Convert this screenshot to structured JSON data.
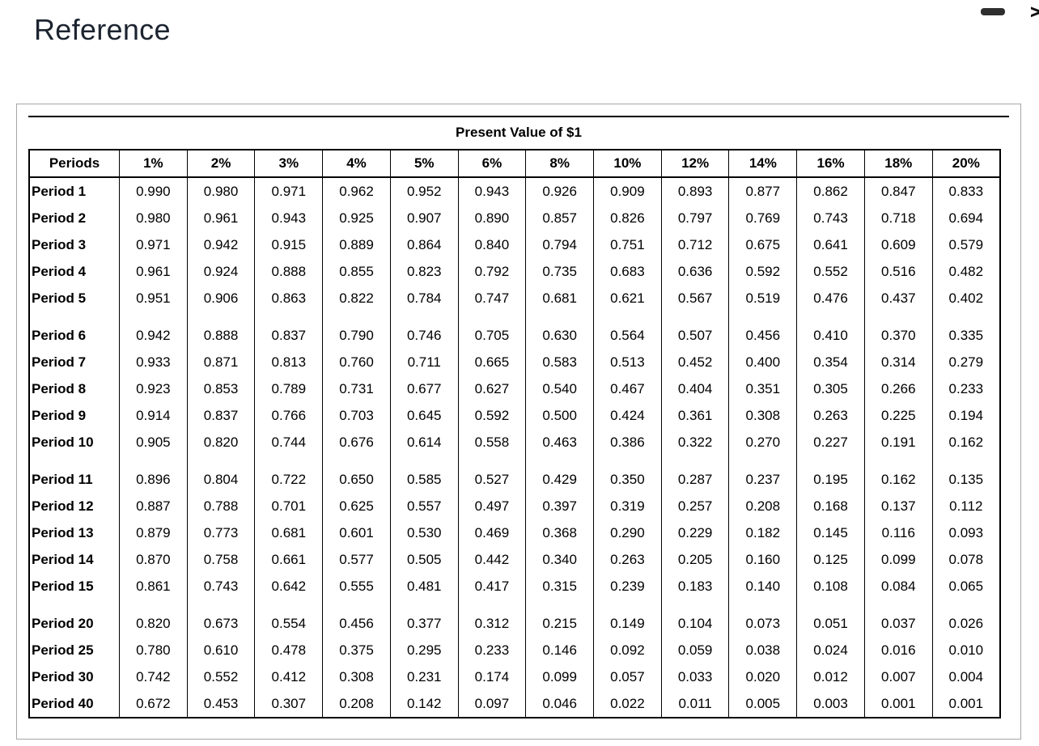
{
  "page": {
    "title": "Reference"
  },
  "window_controls": {
    "chevron": ">"
  },
  "colors": {
    "heading": "#1c2430"
  },
  "table": {
    "title": "Present Value of $1",
    "col_headers": [
      "Periods",
      "1%",
      "2%",
      "3%",
      "4%",
      "5%",
      "6%",
      "8%",
      "10%",
      "12%",
      "14%",
      "16%",
      "18%",
      "20%"
    ],
    "row_groups": [
      [
        {
          "label": "Period 1",
          "values": [
            "0.990",
            "0.980",
            "0.971",
            "0.962",
            "0.952",
            "0.943",
            "0.926",
            "0.909",
            "0.893",
            "0.877",
            "0.862",
            "0.847",
            "0.833"
          ]
        },
        {
          "label": "Period 2",
          "values": [
            "0.980",
            "0.961",
            "0.943",
            "0.925",
            "0.907",
            "0.890",
            "0.857",
            "0.826",
            "0.797",
            "0.769",
            "0.743",
            "0.718",
            "0.694"
          ]
        },
        {
          "label": "Period 3",
          "values": [
            "0.971",
            "0.942",
            "0.915",
            "0.889",
            "0.864",
            "0.840",
            "0.794",
            "0.751",
            "0.712",
            "0.675",
            "0.641",
            "0.609",
            "0.579"
          ]
        },
        {
          "label": "Period 4",
          "values": [
            "0.961",
            "0.924",
            "0.888",
            "0.855",
            "0.823",
            "0.792",
            "0.735",
            "0.683",
            "0.636",
            "0.592",
            "0.552",
            "0.516",
            "0.482"
          ]
        },
        {
          "label": "Period 5",
          "values": [
            "0.951",
            "0.906",
            "0.863",
            "0.822",
            "0.784",
            "0.747",
            "0.681",
            "0.621",
            "0.567",
            "0.519",
            "0.476",
            "0.437",
            "0.402"
          ]
        }
      ],
      [
        {
          "label": "Period 6",
          "values": [
            "0.942",
            "0.888",
            "0.837",
            "0.790",
            "0.746",
            "0.705",
            "0.630",
            "0.564",
            "0.507",
            "0.456",
            "0.410",
            "0.370",
            "0.335"
          ]
        },
        {
          "label": "Period 7",
          "values": [
            "0.933",
            "0.871",
            "0.813",
            "0.760",
            "0.711",
            "0.665",
            "0.583",
            "0.513",
            "0.452",
            "0.400",
            "0.354",
            "0.314",
            "0.279"
          ]
        },
        {
          "label": "Period 8",
          "values": [
            "0.923",
            "0.853",
            "0.789",
            "0.731",
            "0.677",
            "0.627",
            "0.540",
            "0.467",
            "0.404",
            "0.351",
            "0.305",
            "0.266",
            "0.233"
          ]
        },
        {
          "label": "Period 9",
          "values": [
            "0.914",
            "0.837",
            "0.766",
            "0.703",
            "0.645",
            "0.592",
            "0.500",
            "0.424",
            "0.361",
            "0.308",
            "0.263",
            "0.225",
            "0.194"
          ]
        },
        {
          "label": "Period 10",
          "values": [
            "0.905",
            "0.820",
            "0.744",
            "0.676",
            "0.614",
            "0.558",
            "0.463",
            "0.386",
            "0.322",
            "0.270",
            "0.227",
            "0.191",
            "0.162"
          ]
        }
      ],
      [
        {
          "label": "Period 11",
          "values": [
            "0.896",
            "0.804",
            "0.722",
            "0.650",
            "0.585",
            "0.527",
            "0.429",
            "0.350",
            "0.287",
            "0.237",
            "0.195",
            "0.162",
            "0.135"
          ]
        },
        {
          "label": "Period 12",
          "values": [
            "0.887",
            "0.788",
            "0.701",
            "0.625",
            "0.557",
            "0.497",
            "0.397",
            "0.319",
            "0.257",
            "0.208",
            "0.168",
            "0.137",
            "0.112"
          ]
        },
        {
          "label": "Period 13",
          "values": [
            "0.879",
            "0.773",
            "0.681",
            "0.601",
            "0.530",
            "0.469",
            "0.368",
            "0.290",
            "0.229",
            "0.182",
            "0.145",
            "0.116",
            "0.093"
          ]
        },
        {
          "label": "Period 14",
          "values": [
            "0.870",
            "0.758",
            "0.661",
            "0.577",
            "0.505",
            "0.442",
            "0.340",
            "0.263",
            "0.205",
            "0.160",
            "0.125",
            "0.099",
            "0.078"
          ]
        },
        {
          "label": "Period 15",
          "values": [
            "0.861",
            "0.743",
            "0.642",
            "0.555",
            "0.481",
            "0.417",
            "0.315",
            "0.239",
            "0.183",
            "0.140",
            "0.108",
            "0.084",
            "0.065"
          ]
        }
      ],
      [
        {
          "label": "Period 20",
          "values": [
            "0.820",
            "0.673",
            "0.554",
            "0.456",
            "0.377",
            "0.312",
            "0.215",
            "0.149",
            "0.104",
            "0.073",
            "0.051",
            "0.037",
            "0.026"
          ]
        },
        {
          "label": "Period 25",
          "values": [
            "0.780",
            "0.610",
            "0.478",
            "0.375",
            "0.295",
            "0.233",
            "0.146",
            "0.092",
            "0.059",
            "0.038",
            "0.024",
            "0.016",
            "0.010"
          ]
        },
        {
          "label": "Period 30",
          "values": [
            "0.742",
            "0.552",
            "0.412",
            "0.308",
            "0.231",
            "0.174",
            "0.099",
            "0.057",
            "0.033",
            "0.020",
            "0.012",
            "0.007",
            "0.004"
          ]
        },
        {
          "label": "Period 40",
          "values": [
            "0.672",
            "0.453",
            "0.307",
            "0.208",
            "0.142",
            "0.097",
            "0.046",
            "0.022",
            "0.011",
            "0.005",
            "0.003",
            "0.001",
            "0.001"
          ]
        }
      ]
    ]
  }
}
